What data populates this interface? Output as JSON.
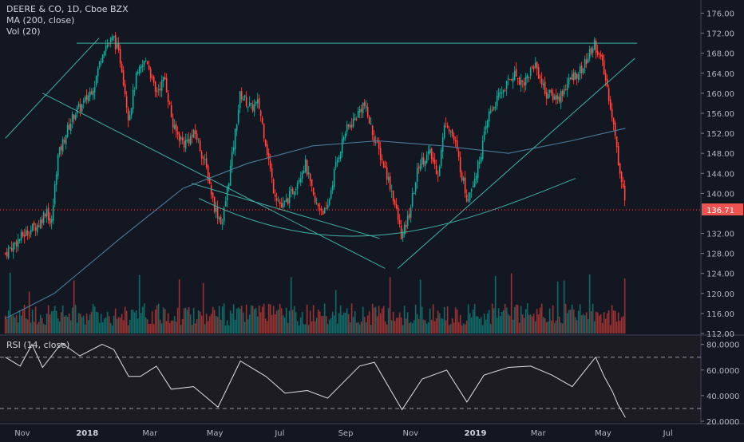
{
  "chart_data": [
    {
      "type": "candlestick",
      "symbol_line": "DEERE & CO, 1D, Cboe BZX",
      "indicators": [
        "MA (200, close)",
        "Vol (20)"
      ],
      "ylim": [
        112,
        178
      ],
      "y_ticks": [
        "176.00",
        "172.00",
        "168.00",
        "164.00",
        "160.00",
        "156.00",
        "152.00",
        "148.00",
        "144.00",
        "140.00",
        "136.71",
        "132.00",
        "128.00",
        "124.00",
        "120.00",
        "116.00",
        "112.00"
      ],
      "last_price": "136.71",
      "x_ticks": [
        "Nov",
        "2018",
        "Mar",
        "May",
        "Jul",
        "Sep",
        "Nov",
        "2019",
        "Mar",
        "May",
        "Jul"
      ],
      "close_path": [
        [
          "2017-10-16",
          128
        ],
        [
          "2017-10-25",
          130
        ],
        [
          "2017-11-01",
          131.5
        ],
        [
          "2017-11-10",
          133
        ],
        [
          "2017-11-17",
          134
        ],
        [
          "2017-11-24",
          137
        ],
        [
          "2017-11-28",
          133
        ],
        [
          "2017-12-04",
          147
        ],
        [
          "2017-12-12",
          152
        ],
        [
          "2017-12-20",
          156
        ],
        [
          "2017-12-29",
          158
        ],
        [
          "2018-01-08",
          162
        ],
        [
          "2018-01-16",
          169
        ],
        [
          "2018-01-26",
          171
        ],
        [
          "2018-02-02",
          166
        ],
        [
          "2018-02-09",
          155
        ],
        [
          "2018-02-16",
          163
        ],
        [
          "2018-02-26",
          167
        ],
        [
          "2018-03-06",
          160
        ],
        [
          "2018-03-15",
          163
        ],
        [
          "2018-03-23",
          153
        ],
        [
          "2018-04-02",
          150
        ],
        [
          "2018-04-13",
          152
        ],
        [
          "2018-04-23",
          145
        ],
        [
          "2018-05-01",
          137
        ],
        [
          "2018-05-08",
          134
        ],
        [
          "2018-05-17",
          147
        ],
        [
          "2018-05-25",
          160
        ],
        [
          "2018-06-04",
          157
        ],
        [
          "2018-06-11",
          158
        ],
        [
          "2018-06-18",
          150
        ],
        [
          "2018-06-25",
          141
        ],
        [
          "2018-07-03",
          137
        ],
        [
          "2018-07-12",
          140
        ],
        [
          "2018-07-25",
          146
        ],
        [
          "2018-08-03",
          138
        ],
        [
          "2018-08-14",
          136
        ],
        [
          "2018-08-22",
          145
        ],
        [
          "2018-08-31",
          152
        ],
        [
          "2018-09-10",
          155
        ],
        [
          "2018-09-18",
          158
        ],
        [
          "2018-09-28",
          151
        ],
        [
          "2018-10-08",
          145
        ],
        [
          "2018-10-15",
          140
        ],
        [
          "2018-10-24",
          131
        ],
        [
          "2018-10-31",
          136
        ],
        [
          "2018-11-09",
          146
        ],
        [
          "2018-11-19",
          148
        ],
        [
          "2018-11-27",
          144
        ],
        [
          "2018-12-04",
          155
        ],
        [
          "2018-12-13",
          150
        ],
        [
          "2018-12-24",
          139
        ],
        [
          "2019-01-03",
          145
        ],
        [
          "2019-01-14",
          156
        ],
        [
          "2019-01-25",
          160
        ],
        [
          "2019-02-06",
          164
        ],
        [
          "2019-02-15",
          162
        ],
        [
          "2019-02-26",
          166
        ],
        [
          "2019-03-08",
          160
        ],
        [
          "2019-03-20",
          159
        ],
        [
          "2019-04-01",
          163
        ],
        [
          "2019-04-12",
          165
        ],
        [
          "2019-04-23",
          170
        ],
        [
          "2019-04-30",
          166
        ],
        [
          "2019-05-06",
          160
        ],
        [
          "2019-05-10",
          155
        ],
        [
          "2019-05-15",
          147
        ],
        [
          "2019-05-21",
          140
        ],
        [
          "2019-05-22",
          136.71
        ]
      ],
      "ma200_path": [
        [
          "2017-10-16",
          115
        ],
        [
          "2017-12-01",
          120
        ],
        [
          "2018-02-01",
          131
        ],
        [
          "2018-04-01",
          141
        ],
        [
          "2018-06-01",
          146
        ],
        [
          "2018-08-01",
          149.5
        ],
        [
          "2018-10-01",
          150.5
        ],
        [
          "2018-12-01",
          149.5
        ],
        [
          "2019-02-01",
          148
        ],
        [
          "2019-04-01",
          150.5
        ],
        [
          "2019-05-22",
          153
        ]
      ],
      "annotations": [
        {
          "type": "hline",
          "price": 170
        },
        {
          "type": "trendline",
          "from": [
            "2017-10-16",
            151
          ],
          "to": [
            "2018-01-12",
            171
          ]
        },
        {
          "type": "trendline",
          "from": [
            "2017-11-20",
            160
          ],
          "to": [
            "2018-10-08",
            125
          ]
        },
        {
          "type": "trendline",
          "from": [
            "2018-04-09",
            142
          ],
          "to": [
            "2018-10-03",
            131
          ]
        },
        {
          "type": "trendline",
          "from": [
            "2018-10-20",
            125
          ],
          "to": [
            "2019-05-31",
            167
          ]
        },
        {
          "type": "arc",
          "points": [
            [
              "2018-04-16",
              139
            ],
            [
              "2018-09-01",
              131
            ],
            [
              "2018-12-15",
              133.5
            ],
            [
              "2019-04-05",
              143
            ]
          ]
        }
      ]
    },
    {
      "type": "line",
      "label": "RSI (14, close)",
      "ylim": [
        20,
        86
      ],
      "y_ticks": [
        "80.0000",
        "60.0000",
        "40.0000",
        "20.0000"
      ],
      "bands": [
        70,
        30
      ],
      "series": [
        [
          "2017-10-16",
          70
        ],
        [
          "2017-10-30",
          63
        ],
        [
          "2017-11-10",
          80
        ],
        [
          "2017-11-20",
          62
        ],
        [
          "2017-12-08",
          81
        ],
        [
          "2017-12-25",
          71
        ],
        [
          "2018-01-15",
          80
        ],
        [
          "2018-01-26",
          76
        ],
        [
          "2018-02-09",
          55
        ],
        [
          "2018-02-20",
          55
        ],
        [
          "2018-03-07",
          63
        ],
        [
          "2018-03-21",
          45
        ],
        [
          "2018-04-11",
          47
        ],
        [
          "2018-05-04",
          31
        ],
        [
          "2018-05-25",
          67
        ],
        [
          "2018-06-18",
          55
        ],
        [
          "2018-07-06",
          42
        ],
        [
          "2018-07-27",
          44
        ],
        [
          "2018-08-15",
          38
        ],
        [
          "2018-09-14",
          63
        ],
        [
          "2018-09-28",
          66
        ],
        [
          "2018-10-24",
          29
        ],
        [
          "2018-11-12",
          53
        ],
        [
          "2018-12-05",
          60
        ],
        [
          "2018-12-24",
          35
        ],
        [
          "2019-01-09",
          56
        ],
        [
          "2019-02-01",
          62
        ],
        [
          "2019-02-22",
          63
        ],
        [
          "2019-03-14",
          56
        ],
        [
          "2019-04-02",
          47
        ],
        [
          "2019-04-24",
          70
        ],
        [
          "2019-05-02",
          55
        ],
        [
          "2019-05-10",
          43
        ],
        [
          "2019-05-15",
          33
        ],
        [
          "2019-05-22",
          23
        ]
      ]
    }
  ]
}
